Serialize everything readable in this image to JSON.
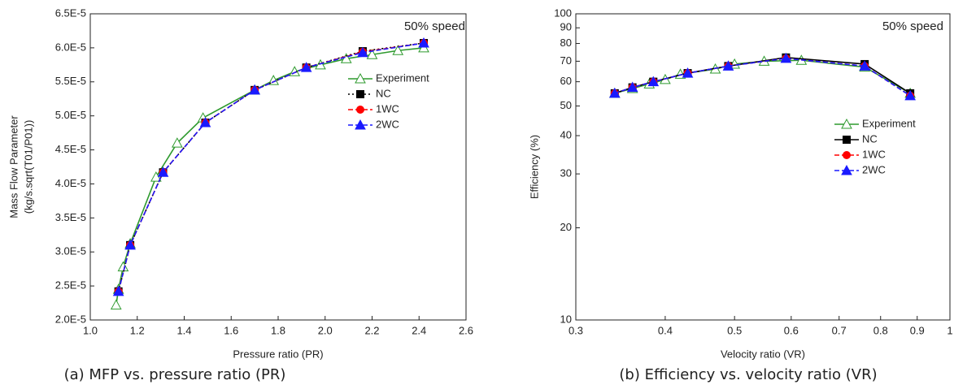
{
  "chart_data": [
    {
      "type": "line",
      "caption": "(a) MFP vs. pressure ratio (PR)",
      "annotation": "50% speed",
      "xlabel": "Pressure ratio (PR)",
      "ylabel": [
        "Mass Flow Parameter",
        "(kg/s.sqrt(T01/P01))"
      ],
      "xscale": "linear",
      "yscale": "linear",
      "legend": "right",
      "xlim": [
        1.0,
        2.6
      ],
      "xticks": [
        {
          "value": 1.0,
          "label": "1.0"
        },
        1.2,
        1.4,
        1.6,
        1.8,
        {
          "value": 2.0,
          "label": "2.0"
        },
        2.2,
        2.4,
        2.6
      ],
      "ylim": [
        2e-05,
        6.5e-05
      ],
      "yticks": [
        {
          "value": 2e-05,
          "label": "2.0E-5"
        },
        {
          "value": 2.5e-05,
          "label": "2.5E-5"
        },
        {
          "value": 3e-05,
          "label": "3.0E-5"
        },
        {
          "value": 3.5e-05,
          "label": "3.5E-5"
        },
        {
          "value": 4e-05,
          "label": "4.0E-5"
        },
        {
          "value": 4.5e-05,
          "label": "4.5E-5"
        },
        {
          "value": 5e-05,
          "label": "5.0E-5"
        },
        {
          "value": 5.5e-05,
          "label": "5.5E-5"
        },
        {
          "value": 6e-05,
          "label": "6.0E-5"
        },
        {
          "value": 6.5e-05,
          "label": "6.5E-5"
        }
      ],
      "series": [
        {
          "name": "Experiment",
          "color": "#2e9a2e",
          "marker": "triangle-open",
          "line": "solid",
          "x": [
            1.11,
            1.12,
            1.14,
            1.17,
            1.28,
            1.37,
            1.48,
            1.7,
            1.78,
            1.87,
            1.98,
            2.09,
            2.2,
            2.31,
            2.42
          ],
          "values": [
            2.22e-05,
            2.45e-05,
            2.78e-05,
            3.12e-05,
            4.1e-05,
            4.6e-05,
            4.97e-05,
            5.38e-05,
            5.52e-05,
            5.65e-05,
            5.75e-05,
            5.84e-05,
            5.9e-05,
            5.96e-05,
            6e-05
          ]
        },
        {
          "name": "NC",
          "color": "#000000",
          "marker": "square",
          "line": "dotted",
          "x": [
            1.12,
            1.17,
            1.31,
            1.49,
            1.7,
            1.92,
            2.16,
            2.42
          ],
          "values": [
            2.42e-05,
            3.1e-05,
            4.17e-05,
            4.9e-05,
            5.38e-05,
            5.71e-05,
            5.95e-05,
            6.07e-05
          ]
        },
        {
          "name": "1WC",
          "color": "#ff0000",
          "marker": "circle",
          "line": "dashed",
          "x": [
            1.12,
            1.17,
            1.31,
            1.49,
            1.7,
            1.92,
            2.16,
            2.42
          ],
          "values": [
            2.42e-05,
            3.1e-05,
            4.17e-05,
            4.9e-05,
            5.38e-05,
            5.71e-05,
            5.94e-05,
            6.07e-05
          ]
        },
        {
          "name": "2WC",
          "color": "#1a1aff",
          "marker": "triangle",
          "line": "dashed",
          "x": [
            1.12,
            1.17,
            1.31,
            1.49,
            1.7,
            1.92,
            2.16,
            2.42
          ],
          "values": [
            2.42e-05,
            3.1e-05,
            4.17e-05,
            4.9e-05,
            5.38e-05,
            5.71e-05,
            5.93e-05,
            6.07e-05
          ]
        }
      ]
    },
    {
      "type": "line",
      "caption": "(b) Efficiency vs. velocity ratio (VR)",
      "annotation": "50% speed",
      "xlabel": "Velocity ratio (VR)",
      "ylabel": [
        "Efficiency (%)"
      ],
      "xscale": "log",
      "yscale": "log",
      "legend": "right",
      "xlim": [
        0.3,
        1
      ],
      "xticks": [
        0.3,
        0.4,
        0.5,
        0.6,
        0.7,
        0.8,
        0.9,
        1
      ],
      "ylim": [
        10,
        100
      ],
      "yticks": [
        10,
        20,
        30,
        40,
        50,
        60,
        70,
        80,
        90,
        100
      ],
      "series": [
        {
          "name": "Experiment",
          "color": "#2e9a2e",
          "marker": "triangle-open",
          "line": "solid",
          "x": [
            0.34,
            0.36,
            0.38,
            0.4,
            0.42,
            0.47,
            0.5,
            0.55,
            0.62,
            0.76,
            0.88
          ],
          "values": [
            55,
            57,
            59,
            61,
            63.5,
            66,
            68.5,
            70,
            70.5,
            67,
            55
          ]
        },
        {
          "name": "NC",
          "color": "#000000",
          "marker": "square",
          "line": "solid",
          "x": [
            0.34,
            0.36,
            0.385,
            0.43,
            0.49,
            0.59,
            0.76,
            0.88
          ],
          "values": [
            55,
            57.5,
            60,
            64,
            67.5,
            72,
            68.5,
            55
          ]
        },
        {
          "name": "1WC",
          "color": "#ff0000",
          "marker": "circle",
          "line": "dashed",
          "x": [
            0.34,
            0.36,
            0.385,
            0.43,
            0.49,
            0.59,
            0.76,
            0.88
          ],
          "values": [
            55,
            57.5,
            60,
            64,
            67.5,
            71.5,
            67.5,
            54
          ]
        },
        {
          "name": "2WC",
          "color": "#1a1aff",
          "marker": "triangle",
          "line": "dashed",
          "x": [
            0.34,
            0.36,
            0.385,
            0.43,
            0.49,
            0.59,
            0.76,
            0.88
          ],
          "values": [
            55,
            57.5,
            60,
            64,
            67.5,
            71.5,
            67.5,
            54
          ]
        }
      ]
    }
  ]
}
